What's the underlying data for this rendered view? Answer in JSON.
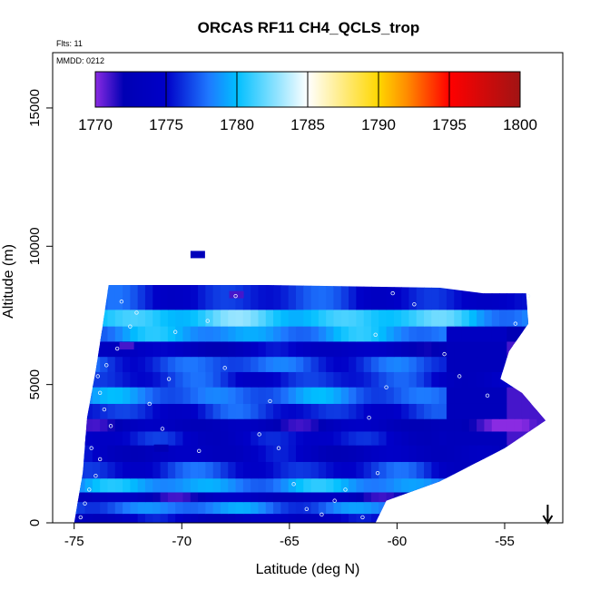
{
  "chart_data": {
    "type": "heatmap",
    "title": "ORCAS RF11 CH4_QCLS_trop",
    "annotations": {
      "flights": "Flts: 11",
      "date": "MMDD: 0212"
    },
    "xlabel": "Latitude (deg N)",
    "ylabel": "Altitude (m)",
    "xlim": [
      -76.0,
      -52.3
    ],
    "ylim": [
      0,
      17000
    ],
    "xticks": [
      -75,
      -70,
      -65,
      -60,
      -55
    ],
    "xtick_labels": [
      "-75",
      "-70",
      "-65",
      "-60",
      "-55"
    ],
    "yticks": [
      0,
      5000,
      10000,
      15000
    ],
    "ytick_labels": [
      "0",
      "5000",
      "10000",
      "15000"
    ],
    "colorbar": {
      "ticks": [
        1770,
        1775,
        1780,
        1785,
        1790,
        1795,
        1800
      ],
      "tick_labels": [
        "1770",
        "1775",
        "1780",
        "1785",
        "1790",
        "1795",
        "1800"
      ],
      "range": [
        1770,
        1800
      ],
      "stops": [
        {
          "v": 1770,
          "color": "#8a2be2"
        },
        {
          "v": 1772,
          "color": "#0000b4"
        },
        {
          "v": 1775,
          "color": "#0000c8"
        },
        {
          "v": 1778,
          "color": "#1e78ff"
        },
        {
          "v": 1780,
          "color": "#00bfff"
        },
        {
          "v": 1785,
          "color": "#ffffff"
        },
        {
          "v": 1790,
          "color": "#ffd700"
        },
        {
          "v": 1792,
          "color": "#ff8c00"
        },
        {
          "v": 1795,
          "color": "#ff0000"
        },
        {
          "v": 1800,
          "color": "#a01414"
        }
      ]
    },
    "profile_boundary": [
      [
        -75.0,
        0
      ],
      [
        -74.6,
        1800
      ],
      [
        -74.4,
        3800
      ],
      [
        -74.0,
        5500
      ],
      [
        -73.7,
        7000
      ],
      [
        -73.4,
        8600
      ],
      [
        -66.0,
        8600
      ],
      [
        -58.0,
        8500
      ],
      [
        -56.0,
        8300
      ],
      [
        -54.0,
        8300
      ],
      [
        -53.9,
        7200
      ],
      [
        -54.8,
        6200
      ],
      [
        -55.2,
        5200
      ],
      [
        -54.2,
        4700
      ],
      [
        -53.1,
        3700
      ],
      [
        -55.0,
        2700
      ],
      [
        -58.0,
        1500
      ],
      [
        -60.5,
        800
      ],
      [
        -61.0,
        0
      ]
    ],
    "bands": [
      {
        "alt": 250,
        "val": 1774
      },
      {
        "alt": 800,
        "val": 1778
      },
      {
        "alt": 1100,
        "val": 1773
      },
      {
        "alt": 1500,
        "val": 1779
      },
      {
        "alt": 2100,
        "val": 1776
      },
      {
        "alt": 2700,
        "val": 1774
      },
      {
        "alt": 3300,
        "val": 1775
      },
      {
        "alt": 3700,
        "val": 1773
      },
      {
        "alt": 4200,
        "val": 1776
      },
      {
        "alt": 4800,
        "val": 1778
      },
      {
        "alt": 5400,
        "val": 1776
      },
      {
        "alt": 5900,
        "val": 1777
      },
      {
        "alt": 6500,
        "val": 1774
      },
      {
        "alt": 7000,
        "val": 1779
      },
      {
        "alt": 7600,
        "val": 1781
      },
      {
        "alt": 8200,
        "val": 1776
      }
    ],
    "east_low_values": [
      {
        "alt": 3600,
        "val": 1771
      },
      {
        "alt": 4500,
        "val": 1771
      },
      {
        "alt": 6300,
        "val": 1771
      },
      {
        "alt": 7000,
        "val": 1772
      }
    ],
    "isolated_patches": [
      {
        "lat": -69.3,
        "alt": 9700,
        "val": 1773
      },
      {
        "lat": -71.0,
        "alt": 2700,
        "val": 1772
      },
      {
        "lat": -72.6,
        "alt": 6400,
        "val": 1771
      },
      {
        "lat": -67.5,
        "alt": 8250,
        "val": 1771
      }
    ],
    "sample_points": [
      [
        -74.7,
        200
      ],
      [
        -74.5,
        700
      ],
      [
        -74.3,
        1200
      ],
      [
        -74.0,
        1700
      ],
      [
        -73.8,
        2300
      ],
      [
        -74.2,
        2700
      ],
      [
        -73.3,
        3500
      ],
      [
        -73.6,
        4100
      ],
      [
        -73.8,
        4700
      ],
      [
        -73.9,
        5300
      ],
      [
        -73.5,
        5700
      ],
      [
        -73.0,
        6300
      ],
      [
        -72.4,
        7100
      ],
      [
        -72.1,
        7600
      ],
      [
        -72.8,
        8000
      ],
      [
        -71.5,
        4300
      ],
      [
        -70.6,
        5200
      ],
      [
        -70.9,
        3400
      ],
      [
        -70.3,
        6900
      ],
      [
        -69.2,
        2600
      ],
      [
        -68.8,
        7300
      ],
      [
        -68.0,
        5600
      ],
      [
        -67.5,
        8200
      ],
      [
        -66.4,
        3200
      ],
      [
        -65.9,
        4400
      ],
      [
        -65.5,
        2700
      ],
      [
        -64.8,
        1400
      ],
      [
        -64.2,
        500
      ],
      [
        -63.5,
        300
      ],
      [
        -62.9,
        800
      ],
      [
        -62.4,
        1200
      ],
      [
        -61.6,
        200
      ],
      [
        -60.9,
        1800
      ],
      [
        -61.3,
        3800
      ],
      [
        -60.5,
        4900
      ],
      [
        -61.0,
        6800
      ],
      [
        -60.2,
        8300
      ],
      [
        -59.2,
        7900
      ],
      [
        -57.8,
        6100
      ],
      [
        -57.1,
        5300
      ],
      [
        -55.8,
        4600
      ],
      [
        -54.5,
        7200
      ],
      [
        -53.9,
        8200
      ]
    ],
    "arrow": {
      "lat": -53.0
    }
  }
}
